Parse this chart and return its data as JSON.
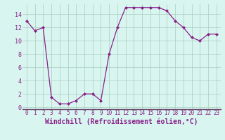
{
  "x": [
    0,
    1,
    2,
    3,
    4,
    5,
    6,
    7,
    8,
    9,
    10,
    11,
    12,
    13,
    14,
    15,
    16,
    17,
    18,
    19,
    20,
    21,
    22,
    23
  ],
  "y": [
    13,
    11.5,
    12,
    1.5,
    0.5,
    0.5,
    1,
    2,
    2,
    1,
    8,
    12,
    15,
    15,
    15,
    15,
    15,
    14.5,
    13,
    12,
    10.5,
    10,
    11,
    11
  ],
  "line_color": "#882288",
  "marker": "D",
  "marker_size": 2,
  "bg_color": "#d8f5f0",
  "grid_color": "#aaccbb",
  "spine_color": "#664466",
  "xlabel": "Windchill (Refroidissement éolien,°C)",
  "xlabel_color": "#882288",
  "xlim": [
    -0.5,
    23.5
  ],
  "ylim": [
    -0.3,
    15.5
  ],
  "yticks": [
    0,
    2,
    4,
    6,
    8,
    10,
    12,
    14
  ],
  "xticks": [
    0,
    1,
    2,
    3,
    4,
    5,
    6,
    7,
    8,
    9,
    10,
    11,
    12,
    13,
    14,
    15,
    16,
    17,
    18,
    19,
    20,
    21,
    22,
    23
  ],
  "tick_label_fontsize": 5.5,
  "xlabel_fontsize": 7.0,
  "ytick_label_fontsize": 6.0
}
